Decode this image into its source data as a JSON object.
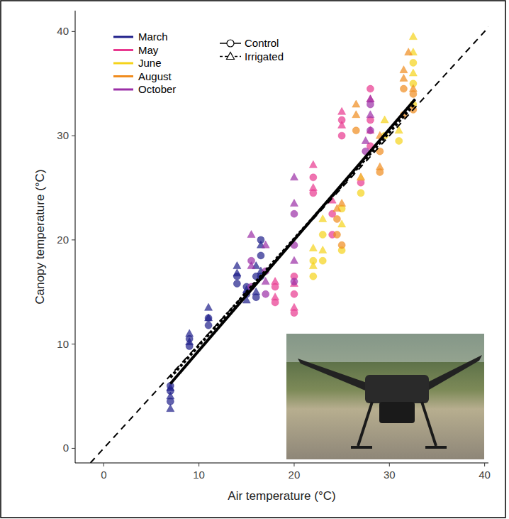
{
  "chart_data": {
    "type": "scatter",
    "x_label": "Air temperature (°C)",
    "y_label": "Canopy temperature (°C)",
    "xlim": [
      -3,
      40.4
    ],
    "ylim": [
      -1.4,
      42
    ],
    "xticks": [
      0,
      10,
      20,
      30,
      40
    ],
    "yticks": [
      0,
      10,
      20,
      30,
      40
    ],
    "grid": false,
    "legend": "top-left",
    "series": [
      {
        "name": "March",
        "color": "#1f1f8a",
        "marker": "circle",
        "x": [
          7,
          7,
          7,
          9,
          9,
          11,
          11,
          14,
          14,
          15,
          15,
          16,
          16,
          16.5,
          16.5,
          16.5
        ],
        "values": [
          4.5,
          5.5,
          6,
          9.8,
          10.5,
          11.8,
          12.5,
          15.8,
          16.5,
          14.8,
          15.5,
          14.5,
          16.5,
          16.5,
          18.5,
          20
        ]
      },
      {
        "name": "March",
        "color": "#1f1f8a",
        "marker": "triangle",
        "x": [
          7,
          7,
          7,
          9,
          9,
          11,
          11,
          14,
          14,
          15,
          15,
          16,
          16,
          16.5,
          16.5
        ],
        "values": [
          3.8,
          5,
          5.8,
          10.2,
          11,
          12.5,
          13.5,
          16.8,
          17.5,
          14.2,
          15.2,
          15,
          17.5,
          17,
          19.5
        ]
      },
      {
        "name": "May",
        "color": "#e8388f",
        "marker": "circle",
        "x": [
          18,
          18,
          20,
          20,
          20,
          22,
          22,
          24,
          24,
          25,
          25,
          27,
          28,
          28,
          28
        ],
        "values": [
          14,
          15.5,
          13,
          14.8,
          16.5,
          24.5,
          26,
          20.5,
          22.5,
          30,
          31.5,
          25.5,
          29,
          31.5,
          34.5
        ]
      },
      {
        "name": "May",
        "color": "#e8388f",
        "marker": "triangle",
        "x": [
          18,
          18,
          20,
          20,
          22,
          22,
          24,
          25,
          25,
          27,
          28,
          28
        ],
        "values": [
          14.5,
          16,
          13.5,
          15.8,
          25,
          27.2,
          23.8,
          31,
          32.3,
          26,
          30.5,
          33.5
        ]
      },
      {
        "name": "June",
        "color": "#f5d31a",
        "marker": "circle",
        "x": [
          22,
          22,
          23,
          23,
          25,
          25,
          27,
          29.5,
          31,
          32.5,
          32.5,
          32.5
        ],
        "values": [
          16.5,
          18,
          18,
          20.5,
          19,
          23,
          24.5,
          30,
          29.5,
          33,
          35,
          37
        ]
      },
      {
        "name": "June",
        "color": "#f5d31a",
        "marker": "triangle",
        "x": [
          22,
          22,
          23,
          23,
          25,
          27,
          29.5,
          31,
          32.5,
          32.5,
          32.5
        ],
        "values": [
          17.5,
          19.2,
          19,
          22,
          21.5,
          26,
          31.5,
          30.5,
          36,
          38,
          39.5
        ]
      },
      {
        "name": "August",
        "color": "#f08c1e",
        "marker": "circle",
        "x": [
          24.5,
          24.5,
          25,
          26.5,
          29,
          29,
          31.5,
          31.5,
          32.5,
          32.5
        ],
        "values": [
          20.5,
          22,
          19.5,
          30.5,
          26.5,
          28.5,
          32,
          34.5,
          32.5,
          34
        ]
      },
      {
        "name": "August",
        "color": "#f08c1e",
        "marker": "triangle",
        "x": [
          24.5,
          25,
          26.5,
          26.5,
          29,
          29,
          31.5,
          31.5,
          32,
          32.5
        ],
        "values": [
          23,
          23.5,
          32,
          33,
          27,
          30,
          35.5,
          36.3,
          38,
          34.5
        ]
      },
      {
        "name": "October",
        "color": "#9b2fa6",
        "marker": "circle",
        "x": [
          15.5,
          15.5,
          17,
          17,
          20,
          20,
          20,
          27.5,
          28,
          28
        ],
        "values": [
          15.5,
          18,
          14.8,
          17,
          16,
          19.5,
          22.5,
          28.5,
          30.5,
          33
        ]
      },
      {
        "name": "October",
        "color": "#9b2fa6",
        "marker": "triangle",
        "x": [
          15.5,
          15.5,
          17,
          17,
          20,
          20,
          20,
          27.5,
          28,
          28
        ],
        "values": [
          17.5,
          20.5,
          16,
          19.5,
          18,
          23.5,
          26,
          29.5,
          32,
          33.5
        ]
      }
    ],
    "treatments": [
      {
        "name": "Control",
        "marker": "circle",
        "line_style": "solid",
        "fit": {
          "x": [
            7,
            32.7
          ],
          "values": [
            6.2,
            33.5
          ]
        }
      },
      {
        "name": "Irrigated",
        "marker": "triangle",
        "line_style": "dotted",
        "fit": {
          "x": [
            7,
            32.7
          ],
          "values": [
            6.8,
            33.1
          ]
        }
      }
    ],
    "reference_line": {
      "x": [
        -3,
        42
      ],
      "values": [
        -3,
        42
      ],
      "line_style": "dashed"
    }
  }
}
